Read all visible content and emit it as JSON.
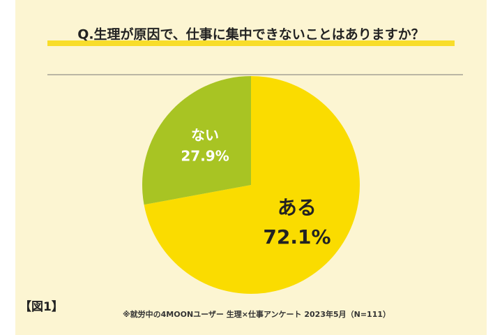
{
  "chart_data": {
    "type": "pie",
    "title": "Q.生理が原因で、仕事に集中できないことはありますか？",
    "categories": [
      "ある",
      "ない"
    ],
    "values": [
      72.1,
      27.9
    ],
    "value_labels": [
      "72.1%",
      "27.9%"
    ],
    "colors": [
      "#fadc00",
      "#a8c423"
    ],
    "figure_label": "【図1】",
    "footnote": "※就労中の4MOONユーザー 生理×仕事アンケート 2023年5月（N=111）"
  }
}
